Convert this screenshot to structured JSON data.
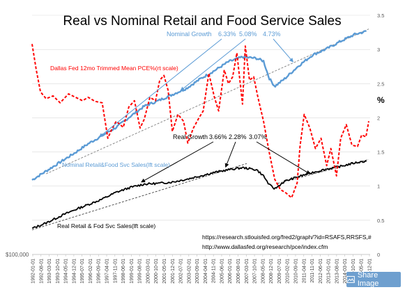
{
  "chart_data": {
    "type": "line",
    "title": "Real vs Nominal Retail and Food Service Sales",
    "x_tick_labels": [
      "1992-01-01",
      "1992-08-01",
      "1993-03-01",
      "1993-10-01",
      "1994-05-01",
      "1994-12-01",
      "1995-07-01",
      "1996-02-01",
      "1996-09-01",
      "1997-04-01",
      "1997-11-01",
      "1998-06-01",
      "1999-01-01",
      "1999-08-01",
      "2000-03-01",
      "2000-10-01",
      "2001-05-01",
      "2001-12-01",
      "2002-07-01",
      "2003-02-01",
      "2003-09-01",
      "2004-04-01",
      "2004-11-01",
      "2005-06-01",
      "2006-01-01",
      "2006-08-01",
      "2007-03-01",
      "2007-10-01",
      "2008-05-01",
      "2008-12-01",
      "2009-07-01",
      "2010-02-01",
      "2010-09-01",
      "2011-04-01",
      "2011-11-01",
      "2012-06-01",
      "2013-01-01",
      "2013-08-01",
      "2014-03-01",
      "2014-10-01",
      "2015-05-01",
      "2015-12-01"
    ],
    "right_axis": {
      "ticks": [
        "0",
        "0.5",
        "1",
        "1.5",
        "2",
        "2.5",
        "3",
        "3.5"
      ],
      "unit_label": "%",
      "ylim": [
        0,
        3.5
      ]
    },
    "left_axis": {
      "tick_labels": [
        "$100,000"
      ]
    },
    "series": [
      {
        "name": "Nominal Retail&Food Svc Sales(lft scale)",
        "color": "#5b9bd5",
        "axis": "left",
        "x": [
          1992.0,
          1993.0,
          1994.0,
          1995.0,
          1996.0,
          1997.0,
          1998.0,
          1999.0,
          2000.0,
          2001.0,
          2002.0,
          2003.0,
          2004.0,
          2005.0,
          2006.0,
          2007.0,
          2008.0,
          2008.5,
          2008.9,
          2009.3,
          2010.0,
          2011.0,
          2012.0,
          2013.0,
          2014.0,
          2015.0,
          2015.9
        ],
        "y": [
          1.09,
          1.22,
          1.35,
          1.48,
          1.62,
          1.74,
          1.86,
          2.02,
          2.17,
          2.25,
          2.34,
          2.43,
          2.57,
          2.69,
          2.82,
          2.89,
          2.87,
          2.83,
          2.58,
          2.46,
          2.57,
          2.76,
          2.92,
          3.01,
          3.12,
          3.22,
          3.27
        ]
      },
      {
        "name": "Dallas Fed 12mo Trimmed Mean PCE%(rt scale)",
        "color": "#ff0000",
        "axis": "right",
        "x": [
          1992.0,
          1992.3,
          1992.6,
          1993.0,
          1993.5,
          1994.0,
          1994.6,
          1995.1,
          1995.6,
          1996.0,
          1996.5,
          1997.0,
          1997.4,
          1997.7,
          1998.0,
          1998.5,
          1998.9,
          1999.3,
          1999.7,
          2000.0,
          2000.4,
          2000.8,
          2001.1,
          2001.4,
          2001.7,
          2002.0,
          2002.4,
          2002.8,
          2003.1,
          2003.5,
          2003.9,
          2004.2,
          2004.6,
          2005.0,
          2005.3,
          2005.7,
          2006.0,
          2006.3,
          2006.6,
          2007.0,
          2007.2,
          2007.5,
          2007.8,
          2008.1,
          2008.5,
          2008.9,
          2009.3,
          2009.7,
          2010.1,
          2010.5,
          2010.9,
          2011.1,
          2011.4,
          2011.8,
          2012.2,
          2012.6,
          2013.0,
          2013.3,
          2013.7,
          2014.0,
          2014.4,
          2014.8,
          2015.2,
          2015.5,
          2015.8,
          2016.0
        ],
        "y": [
          3.08,
          2.7,
          2.38,
          2.28,
          2.32,
          2.22,
          2.35,
          2.3,
          2.25,
          2.3,
          2.24,
          2.22,
          1.7,
          1.84,
          1.95,
          1.86,
          2.16,
          2.25,
          1.85,
          1.98,
          2.3,
          2.25,
          2.55,
          2.62,
          2.4,
          1.8,
          2.05,
          1.95,
          1.63,
          1.85,
          2.0,
          2.1,
          2.65,
          2.3,
          2.1,
          2.7,
          2.5,
          2.6,
          2.95,
          2.2,
          3.05,
          2.55,
          2.6,
          2.3,
          1.95,
          1.5,
          1.1,
          0.95,
          0.9,
          0.83,
          1.05,
          1.58,
          2.05,
          1.85,
          1.55,
          1.7,
          1.3,
          1.55,
          1.15,
          1.7,
          1.9,
          1.6,
          1.58,
          1.75,
          1.72,
          1.95
        ]
      },
      {
        "name": "Real Retail & Fod Svc Sales(lft scale)",
        "color": "#000000",
        "axis": "left",
        "x": [
          1992.0,
          1993.0,
          1994.0,
          1995.0,
          1996.0,
          1997.0,
          1998.0,
          1999.0,
          2000.0,
          2001.0,
          2002.0,
          2003.0,
          2004.0,
          2005.0,
          2006.0,
          2007.0,
          2008.0,
          2008.5,
          2008.9,
          2009.3,
          2010.0,
          2011.0,
          2012.0,
          2013.0,
          2014.0,
          2015.0,
          2015.9
        ],
        "y": [
          0.38,
          0.46,
          0.56,
          0.65,
          0.73,
          0.81,
          0.91,
          0.98,
          1.03,
          1.04,
          1.06,
          1.1,
          1.15,
          1.2,
          1.24,
          1.27,
          1.24,
          1.15,
          1.02,
          0.96,
          1.07,
          1.14,
          1.2,
          1.25,
          1.29,
          1.34,
          1.37
        ]
      }
    ],
    "trend_lines": [
      {
        "series": "nominal",
        "x": [
          1993.0,
          2016.0
        ],
        "y": [
          1.18,
          3.3
        ]
      },
      {
        "series": "real",
        "x": [
          1992.0,
          2007.3
        ],
        "y": [
          0.36,
          1.33
        ]
      },
      {
        "series": "real",
        "x": [
          2009.5,
          2016.0
        ],
        "y": [
          1.04,
          1.39
        ]
      }
    ],
    "annotations": {
      "nominal_growth": {
        "label": "Nominal  Growth",
        "rates": [
          "6.33%",
          "5.08%",
          "4.73%"
        ]
      },
      "real_growth": {
        "label": "Real Growth",
        "rates": [
          "3.66%",
          "2.28%",
          "3.07%"
        ]
      },
      "sources": [
        "https://research.stlouisfed.org/fred2/graph/?id=RSAFS,RRSFS,#",
        "http://www.dallasfed.org/research/pce/index.cfm"
      ]
    }
  },
  "ui": {
    "share_label": "Share Image"
  }
}
